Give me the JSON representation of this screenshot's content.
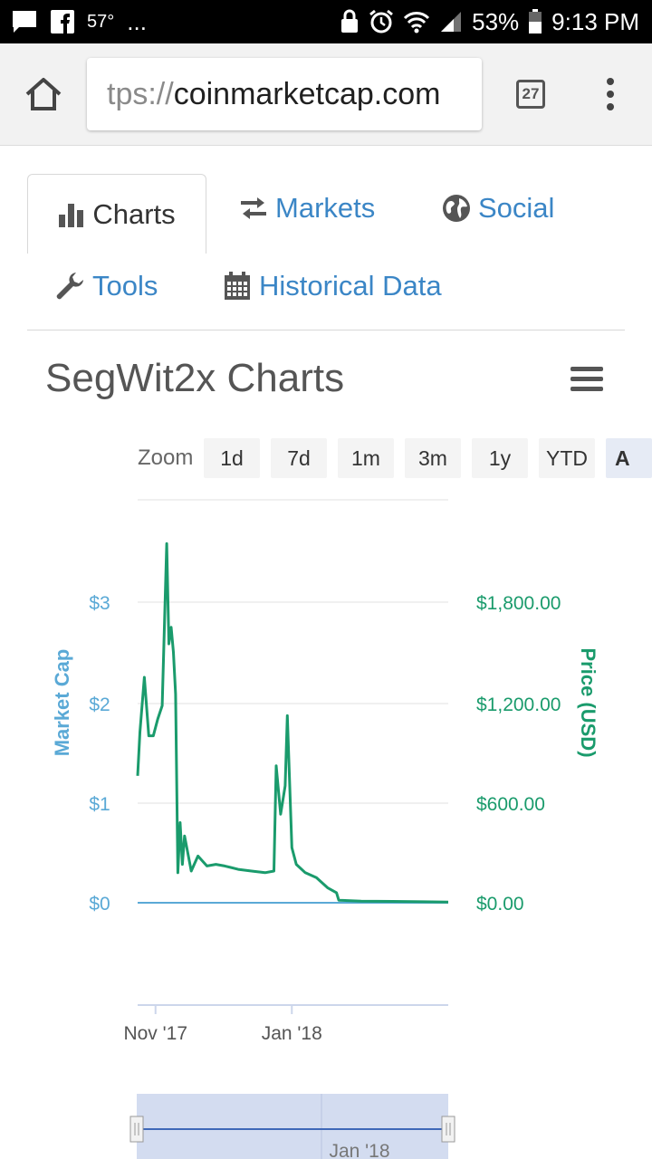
{
  "status_bar": {
    "temperature": "57°",
    "more": "...",
    "battery": "53%",
    "time": "9:13 PM"
  },
  "browser": {
    "url_dim": "tps://",
    "url_main": "coinmarketcap.com",
    "tab_count": "27"
  },
  "tabs": [
    {
      "label": "Charts",
      "icon": "bar-chart-icon"
    },
    {
      "label": "Markets",
      "icon": "exchange-arrows-icon"
    },
    {
      "label": "Social",
      "icon": "globe-icon"
    },
    {
      "label": "Tools",
      "icon": "wrench-icon"
    },
    {
      "label": "Historical Data",
      "icon": "calendar-icon"
    }
  ],
  "page": {
    "title": "SegWit2x Charts"
  },
  "zoom": {
    "label": "Zoom",
    "options": [
      "1d",
      "7d",
      "1m",
      "3m",
      "1y",
      "YTD",
      "A"
    ],
    "selected": "A"
  },
  "chart_data": {
    "type": "line",
    "title": "",
    "y_left": {
      "label": "Market Cap",
      "ticks": [
        "$0",
        "$1",
        "$2",
        "$3"
      ],
      "color": "#5aa9d6"
    },
    "y_right": {
      "label": "Price (USD)",
      "ticks": [
        "$0.00",
        "$600.00",
        "$1,200.00",
        "$1,800.00"
      ],
      "range": [
        0,
        2200
      ],
      "color": "#1a9b6c"
    },
    "x_ticks": [
      "Nov '17",
      "Jan '18"
    ],
    "series": [
      {
        "name": "Price (USD)",
        "color": "#1a9b6c",
        "x": [
          "2017-10-24",
          "2017-10-25",
          "2017-10-27",
          "2017-10-29",
          "2017-10-31",
          "2017-11-02",
          "2017-11-04",
          "2017-11-06",
          "2017-11-07",
          "2017-11-08",
          "2017-11-09",
          "2017-11-10",
          "2017-11-11",
          "2017-11-12",
          "2017-11-13",
          "2017-11-14",
          "2017-11-17",
          "2017-11-20",
          "2017-11-24",
          "2017-11-28",
          "2017-12-02",
          "2017-12-08",
          "2017-12-14",
          "2017-12-20",
          "2017-12-24",
          "2017-12-25",
          "2017-12-27",
          "2017-12-29",
          "2017-12-30",
          "2018-01-01",
          "2018-01-03",
          "2018-01-07",
          "2018-01-12",
          "2018-01-17",
          "2018-01-21",
          "2018-01-22",
          "2018-02-01",
          "2018-02-15",
          "2018-03-01",
          "2018-03-12"
        ],
        "values": [
          760,
          1020,
          1350,
          1000,
          1000,
          1100,
          1180,
          2150,
          1550,
          1650,
          1500,
          1250,
          180,
          480,
          230,
          400,
          190,
          280,
          220,
          230,
          220,
          200,
          190,
          180,
          190,
          820,
          530,
          700,
          1120,
          330,
          230,
          180,
          150,
          90,
          60,
          15,
          10,
          8,
          6,
          4
        ]
      },
      {
        "name": "Market Cap",
        "color": "#5aa9d6",
        "x": [
          "2017-10-24",
          "2018-03-12"
        ],
        "values": [
          0,
          0
        ]
      }
    ],
    "grid": true,
    "legend": "none"
  },
  "navigator": {
    "x_label": "Jan '18"
  }
}
